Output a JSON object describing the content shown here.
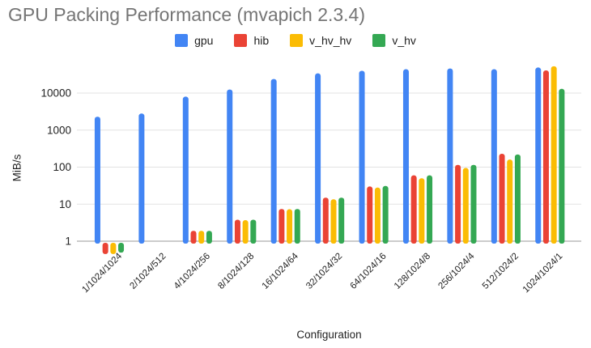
{
  "chart": {
    "title": "GPU Packing Performance (mvapich 2.3.4)"
  },
  "chart_data": {
    "type": "bar",
    "title": "GPU Packing Performance (mvapich 2.3.4)",
    "xlabel": "Configuration",
    "ylabel": "MiB/s",
    "y_scale": "log",
    "grid": true,
    "legend_position": "top",
    "y_ticks": [
      1,
      10,
      100,
      1000,
      10000
    ],
    "ylim": [
      0.45,
      60000
    ],
    "categories": [
      "1/1024/1024",
      "2/1024/512",
      "4/1024/256",
      "8/1024/128",
      "16/1024/64",
      "32/1024/32",
      "64/1024/16",
      "128/1024/8",
      "256/1024/4",
      "512/1024/2",
      "1024/1024/1"
    ],
    "series": [
      {
        "name": "gpu",
        "color": "#4285F4",
        "values": [
          2300,
          2800,
          8000,
          12500,
          24000,
          34000,
          40000,
          44000,
          46000,
          44000,
          49000
        ]
      },
      {
        "name": "hib",
        "color": "#EA4335",
        "values": [
          0.55,
          1,
          1.9,
          3.8,
          7.4,
          15,
          30,
          60,
          115,
          230,
          41000
        ]
      },
      {
        "name": "v_hv_hv",
        "color": "#FBBC04",
        "values": [
          0.55,
          1,
          1.9,
          3.7,
          7.3,
          13.5,
          28,
          50,
          95,
          160,
          53000
        ]
      },
      {
        "name": "v_hv",
        "color": "#34A853",
        "values": [
          0.6,
          1,
          1.9,
          3.8,
          7.4,
          15,
          31,
          60,
          115,
          220,
          13000
        ]
      }
    ]
  },
  "colors": {
    "title": "#757575",
    "gridline": "#e3e3e3",
    "baseline": "#cccccc",
    "tick_text": "#222222"
  }
}
